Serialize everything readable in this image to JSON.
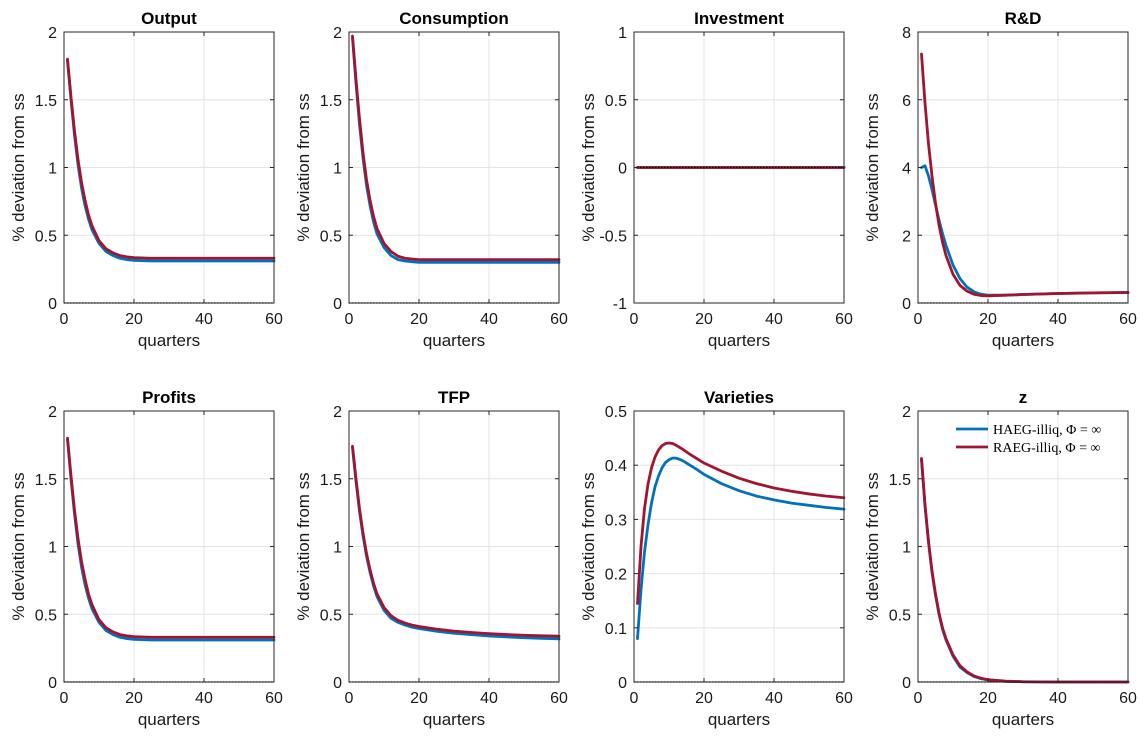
{
  "figure": {
    "colors": {
      "haeg": "#0072BD",
      "raeg": "#A2142F",
      "grid": "#e4e4e4",
      "axis": "#262626"
    },
    "legend": {
      "location": "top-right of panel z",
      "entries": [
        {
          "label": "HAEG-illiq, Φ = ∞",
          "color": "#0072BD"
        },
        {
          "label": "RAEG-illiq, Φ = ∞",
          "color": "#A2142F"
        }
      ]
    }
  },
  "chart_data": [
    {
      "type": "line",
      "title": "Output",
      "xlabel": "quarters",
      "ylabel": "% deviation from ss",
      "xlim": [
        0,
        60
      ],
      "ylim": [
        0,
        2
      ],
      "xticks": [
        "0",
        "20",
        "40",
        "60"
      ],
      "yticks": [
        "0",
        "0.5",
        "1",
        "1.5",
        "2"
      ],
      "grid": true,
      "zero_line": true,
      "series": [
        {
          "name": "HAEG-illiq, Φ = ∞",
          "color": "#0072BD",
          "x": [
            1,
            2,
            3,
            4,
            5,
            6,
            7,
            8,
            10,
            12,
            14,
            16,
            18,
            20,
            25,
            30,
            40,
            50,
            60
          ],
          "y": [
            1.79,
            1.5,
            1.24,
            1.02,
            0.85,
            0.72,
            0.62,
            0.54,
            0.44,
            0.38,
            0.35,
            0.33,
            0.32,
            0.315,
            0.31,
            0.31,
            0.31,
            0.31,
            0.31
          ]
        },
        {
          "name": "RAEG-illiq, Φ = ∞",
          "color": "#A2142F",
          "x": [
            1,
            2,
            3,
            4,
            5,
            6,
            7,
            8,
            10,
            12,
            14,
            16,
            18,
            20,
            25,
            30,
            40,
            50,
            60
          ],
          "y": [
            1.8,
            1.52,
            1.27,
            1.06,
            0.89,
            0.76,
            0.65,
            0.57,
            0.46,
            0.4,
            0.37,
            0.35,
            0.34,
            0.335,
            0.33,
            0.33,
            0.33,
            0.33,
            0.33
          ]
        }
      ]
    },
    {
      "type": "line",
      "title": "Consumption",
      "xlabel": "quarters",
      "ylabel": "% deviation from ss",
      "xlim": [
        0,
        60
      ],
      "ylim": [
        0,
        2
      ],
      "xticks": [
        "0",
        "20",
        "40",
        "60"
      ],
      "yticks": [
        "0",
        "0.5",
        "1",
        "1.5",
        "2"
      ],
      "grid": true,
      "zero_line": true,
      "series": [
        {
          "name": "HAEG-illiq, Φ = ∞",
          "color": "#0072BD",
          "x": [
            1,
            2,
            3,
            4,
            5,
            6,
            7,
            8,
            10,
            12,
            14,
            16,
            18,
            20,
            25,
            30,
            40,
            50,
            60
          ],
          "y": [
            1.96,
            1.62,
            1.32,
            1.07,
            0.87,
            0.72,
            0.6,
            0.51,
            0.41,
            0.35,
            0.32,
            0.31,
            0.305,
            0.3,
            0.3,
            0.3,
            0.3,
            0.3,
            0.3
          ]
        },
        {
          "name": "RAEG-illiq, Φ = ∞",
          "color": "#A2142F",
          "x": [
            1,
            2,
            3,
            4,
            5,
            6,
            7,
            8,
            10,
            12,
            14,
            16,
            18,
            20,
            25,
            30,
            40,
            50,
            60
          ],
          "y": [
            1.97,
            1.65,
            1.36,
            1.11,
            0.91,
            0.76,
            0.64,
            0.55,
            0.44,
            0.38,
            0.345,
            0.33,
            0.325,
            0.32,
            0.32,
            0.32,
            0.32,
            0.32,
            0.32
          ]
        }
      ]
    },
    {
      "type": "line",
      "title": "Investment",
      "xlabel": "quarters",
      "ylabel": "% deviation from ss",
      "xlim": [
        0,
        60
      ],
      "ylim": [
        -1,
        1
      ],
      "xticks": [
        "0",
        "20",
        "40",
        "60"
      ],
      "yticks": [
        "-1",
        "-0.5",
        "0",
        "0.5",
        "1"
      ],
      "grid": true,
      "zero_line": true,
      "series": [
        {
          "name": "HAEG-illiq, Φ = ∞",
          "color": "#0072BD",
          "x": [
            1,
            60
          ],
          "y": [
            0,
            0
          ]
        },
        {
          "name": "RAEG-illiq, Φ = ∞",
          "color": "#A2142F",
          "x": [
            1,
            60
          ],
          "y": [
            0,
            0
          ]
        }
      ]
    },
    {
      "type": "line",
      "title": "R&D",
      "xlabel": "quarters",
      "ylabel": "% deviation from ss",
      "xlim": [
        0,
        60
      ],
      "ylim": [
        0,
        8
      ],
      "xticks": [
        "0",
        "20",
        "40",
        "60"
      ],
      "yticks": [
        "0",
        "2",
        "4",
        "6",
        "8"
      ],
      "grid": true,
      "zero_line": true,
      "series": [
        {
          "name": "HAEG-illiq, Φ = ∞",
          "color": "#0072BD",
          "x": [
            1,
            2,
            3,
            4,
            5,
            6,
            7,
            8,
            10,
            12,
            14,
            16,
            18,
            20,
            25,
            30,
            40,
            50,
            60
          ],
          "y": [
            4.0,
            4.05,
            3.75,
            3.35,
            2.9,
            2.45,
            2.05,
            1.7,
            1.12,
            0.72,
            0.47,
            0.33,
            0.26,
            0.23,
            0.23,
            0.25,
            0.28,
            0.3,
            0.31
          ]
        },
        {
          "name": "RAEG-illiq, Φ = ∞",
          "color": "#A2142F",
          "x": [
            1,
            2,
            3,
            4,
            5,
            6,
            7,
            8,
            10,
            12,
            14,
            16,
            18,
            20,
            25,
            30,
            40,
            50,
            60
          ],
          "y": [
            7.35,
            5.9,
            4.7,
            3.75,
            2.95,
            2.3,
            1.8,
            1.4,
            0.85,
            0.52,
            0.35,
            0.26,
            0.22,
            0.21,
            0.23,
            0.25,
            0.28,
            0.3,
            0.31
          ]
        }
      ]
    },
    {
      "type": "line",
      "title": "Profits",
      "xlabel": "quarters",
      "ylabel": "% deviation from ss",
      "xlim": [
        0,
        60
      ],
      "ylim": [
        0,
        2
      ],
      "xticks": [
        "0",
        "20",
        "40",
        "60"
      ],
      "yticks": [
        "0",
        "0.5",
        "1",
        "1.5",
        "2"
      ],
      "grid": true,
      "zero_line": true,
      "series": [
        {
          "name": "HAEG-illiq, Φ = ∞",
          "color": "#0072BD",
          "x": [
            1,
            2,
            3,
            4,
            5,
            6,
            7,
            8,
            10,
            12,
            14,
            16,
            18,
            20,
            25,
            30,
            40,
            50,
            60
          ],
          "y": [
            1.79,
            1.5,
            1.24,
            1.02,
            0.85,
            0.72,
            0.62,
            0.54,
            0.44,
            0.38,
            0.35,
            0.33,
            0.32,
            0.315,
            0.31,
            0.31,
            0.31,
            0.31,
            0.31
          ]
        },
        {
          "name": "RAEG-illiq, Φ = ∞",
          "color": "#A2142F",
          "x": [
            1,
            2,
            3,
            4,
            5,
            6,
            7,
            8,
            10,
            12,
            14,
            16,
            18,
            20,
            25,
            30,
            40,
            50,
            60
          ],
          "y": [
            1.8,
            1.52,
            1.27,
            1.06,
            0.89,
            0.76,
            0.65,
            0.57,
            0.46,
            0.4,
            0.37,
            0.35,
            0.34,
            0.335,
            0.33,
            0.33,
            0.33,
            0.33,
            0.33
          ]
        }
      ]
    },
    {
      "type": "line",
      "title": "TFP",
      "xlabel": "quarters",
      "ylabel": "% deviation from ss",
      "xlim": [
        0,
        60
      ],
      "ylim": [
        0,
        2
      ],
      "xticks": [
        "0",
        "20",
        "40",
        "60"
      ],
      "yticks": [
        "0",
        "0.5",
        "1",
        "1.5",
        "2"
      ],
      "grid": true,
      "zero_line": true,
      "series": [
        {
          "name": "HAEG-illiq, Φ = ∞",
          "color": "#0072BD",
          "x": [
            1,
            2,
            3,
            4,
            5,
            6,
            7,
            8,
            10,
            12,
            14,
            16,
            18,
            20,
            25,
            30,
            35,
            40,
            45,
            50,
            55,
            60
          ],
          "y": [
            1.73,
            1.48,
            1.26,
            1.08,
            0.93,
            0.81,
            0.71,
            0.63,
            0.53,
            0.47,
            0.44,
            0.42,
            0.405,
            0.395,
            0.375,
            0.36,
            0.35,
            0.34,
            0.333,
            0.327,
            0.322,
            0.318
          ]
        },
        {
          "name": "RAEG-illiq, Φ = ∞",
          "color": "#A2142F",
          "x": [
            1,
            2,
            3,
            4,
            5,
            6,
            7,
            8,
            10,
            12,
            14,
            16,
            18,
            20,
            25,
            30,
            35,
            40,
            45,
            50,
            55,
            60
          ],
          "y": [
            1.74,
            1.5,
            1.28,
            1.1,
            0.95,
            0.83,
            0.73,
            0.65,
            0.55,
            0.49,
            0.455,
            0.435,
            0.42,
            0.41,
            0.39,
            0.375,
            0.365,
            0.357,
            0.35,
            0.345,
            0.341,
            0.338
          ]
        }
      ]
    },
    {
      "type": "line",
      "title": "Varieties",
      "xlabel": "quarters",
      "ylabel": "% deviation from ss",
      "xlim": [
        0,
        60
      ],
      "ylim": [
        0,
        0.5
      ],
      "xticks": [
        "0",
        "20",
        "40",
        "60"
      ],
      "yticks": [
        "0",
        "0.1",
        "0.2",
        "0.3",
        "0.4",
        "0.5"
      ],
      "grid": true,
      "zero_line": true,
      "series": [
        {
          "name": "HAEG-illiq, Φ = ∞",
          "color": "#0072BD",
          "x": [
            1,
            2,
            3,
            4,
            5,
            6,
            7,
            8,
            9,
            10,
            11,
            12,
            13,
            14,
            16,
            18,
            20,
            25,
            30,
            35,
            40,
            45,
            50,
            55,
            60
          ],
          "y": [
            0.08,
            0.17,
            0.24,
            0.29,
            0.33,
            0.36,
            0.38,
            0.395,
            0.405,
            0.41,
            0.413,
            0.413,
            0.411,
            0.408,
            0.4,
            0.392,
            0.383,
            0.366,
            0.353,
            0.343,
            0.336,
            0.33,
            0.326,
            0.322,
            0.319
          ]
        },
        {
          "name": "RAEG-illiq, Φ = ∞",
          "color": "#A2142F",
          "x": [
            1,
            2,
            3,
            4,
            5,
            6,
            7,
            8,
            9,
            10,
            11,
            12,
            13,
            14,
            16,
            18,
            20,
            25,
            30,
            35,
            40,
            45,
            50,
            55,
            60
          ],
          "y": [
            0.145,
            0.25,
            0.32,
            0.365,
            0.395,
            0.415,
            0.428,
            0.436,
            0.44,
            0.441,
            0.44,
            0.437,
            0.433,
            0.429,
            0.42,
            0.412,
            0.404,
            0.389,
            0.376,
            0.366,
            0.358,
            0.352,
            0.347,
            0.343,
            0.34
          ]
        }
      ]
    },
    {
      "type": "line",
      "title": "z",
      "xlabel": "quarters",
      "ylabel": "% deviation from ss",
      "xlim": [
        0,
        60
      ],
      "ylim": [
        0,
        2
      ],
      "xticks": [
        "0",
        "20",
        "40",
        "60"
      ],
      "yticks": [
        "0",
        "0.5",
        "1",
        "1.5",
        "2"
      ],
      "grid": true,
      "zero_line": true,
      "series": [
        {
          "name": "HAEG-illiq, Φ = ∞",
          "color": "#0072BD",
          "x": [
            1,
            2,
            3,
            4,
            5,
            6,
            7,
            8,
            10,
            12,
            14,
            16,
            18,
            20,
            25,
            30,
            40,
            50,
            60
          ],
          "y": [
            1.64,
            1.3,
            1.03,
            0.81,
            0.64,
            0.5,
            0.39,
            0.31,
            0.19,
            0.11,
            0.07,
            0.04,
            0.025,
            0.015,
            0.005,
            0.002,
            0,
            0,
            0
          ]
        },
        {
          "name": "RAEG-illiq, Φ = ∞",
          "color": "#A2142F",
          "x": [
            1,
            2,
            3,
            4,
            5,
            6,
            7,
            8,
            10,
            12,
            14,
            16,
            18,
            20,
            25,
            30,
            40,
            50,
            60
          ],
          "y": [
            1.65,
            1.31,
            1.04,
            0.82,
            0.65,
            0.51,
            0.4,
            0.32,
            0.2,
            0.12,
            0.075,
            0.045,
            0.028,
            0.017,
            0.006,
            0.002,
            0,
            0,
            0
          ]
        }
      ]
    }
  ]
}
